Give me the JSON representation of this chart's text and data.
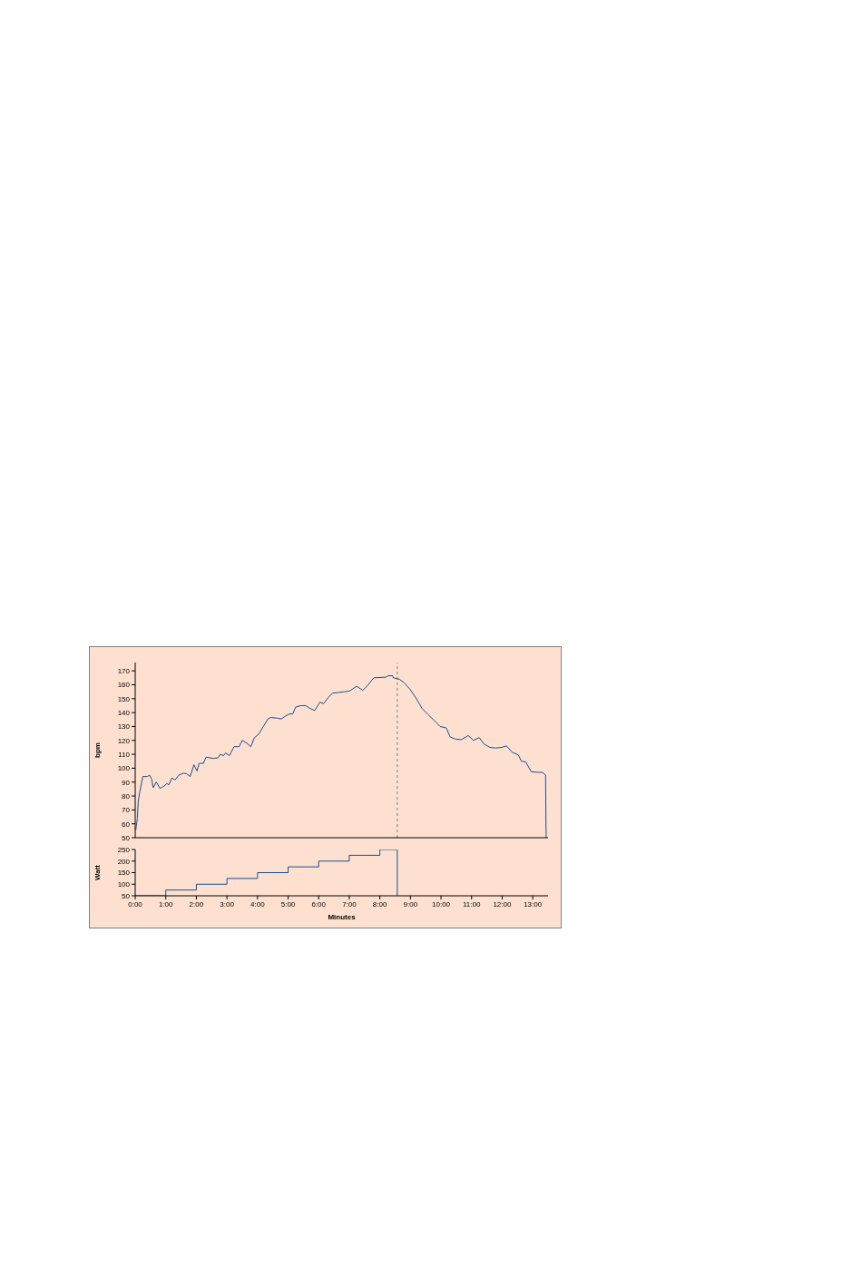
{
  "chart_data": [
    {
      "type": "line",
      "ylabel": "bpm",
      "tick_labels": "y",
      "color": "#1a4f8f",
      "xlim": [
        0,
        13.5
      ],
      "ylim": [
        50,
        176
      ],
      "yticks": [
        50,
        60,
        70,
        80,
        90,
        100,
        110,
        120,
        130,
        140,
        150,
        160,
        170
      ],
      "x": [
        0.02,
        0.07,
        0.1,
        0.15,
        0.25,
        0.39,
        0.47,
        0.54,
        0.59,
        0.69,
        0.81,
        0.94,
        1.04,
        1.1,
        1.2,
        1.3,
        1.43,
        1.58,
        1.68,
        1.8,
        1.92,
        2.02,
        2.09,
        2.23,
        2.32,
        2.56,
        2.71,
        2.78,
        2.89,
        2.96,
        3.08,
        3.23,
        3.4,
        3.5,
        3.65,
        3.78,
        3.9,
        4.04,
        4.19,
        4.34,
        4.44,
        4.64,
        4.78,
        4.88,
        5.03,
        5.15,
        5.25,
        5.42,
        5.57,
        5.72,
        5.87,
        6.04,
        6.16,
        6.32,
        6.45,
        6.67,
        7.01,
        7.24,
        7.44,
        7.6,
        7.8,
        8.2,
        8.27,
        8.42,
        8.44,
        8.64,
        8.79,
        8.98,
        9.18,
        9.38,
        9.58,
        9.77,
        9.97,
        10.17,
        10.3,
        10.46,
        10.66,
        10.89,
        11.06,
        11.25,
        11.4,
        11.6,
        11.79,
        11.99,
        12.14,
        12.33,
        12.53,
        12.63,
        12.77,
        12.95,
        13.17,
        13.32,
        13.42,
        13.43,
        13.44
      ],
      "values": [
        55.5,
        64,
        76,
        83,
        94,
        94,
        95,
        92,
        86,
        90,
        85.5,
        87,
        89,
        88,
        93,
        91.5,
        95,
        96.5,
        96,
        94,
        102.5,
        98,
        103.5,
        103.5,
        108,
        107,
        107.5,
        110,
        109,
        111,
        109,
        115.5,
        115.5,
        120,
        118,
        115.5,
        122,
        124.5,
        130,
        135.5,
        136.5,
        136,
        135.5,
        137,
        139,
        139,
        144,
        145,
        145,
        143,
        141.5,
        147.5,
        146.5,
        151,
        154,
        154.5,
        155.5,
        159,
        156,
        159.5,
        165,
        165.5,
        166.5,
        166.5,
        165,
        164,
        161.5,
        157,
        150.5,
        143,
        138.5,
        134.5,
        130,
        129,
        122.5,
        121,
        120.5,
        123.5,
        120,
        122,
        117.5,
        115,
        114.5,
        115,
        116,
        111.5,
        109.5,
        105,
        104.5,
        97.5,
        97,
        97,
        95,
        63,
        50
      ],
      "ref_lines": [
        {
          "axis": "x",
          "value": 8.57,
          "color": "#808080",
          "line_style": "dashed"
        }
      ]
    },
    {
      "type": "step",
      "ylabel": "Watt",
      "xlabel": "Minutes",
      "color": "#1a4f8f",
      "xlim": [
        0,
        13.5
      ],
      "ylim": [
        50,
        250
      ],
      "yticks": [
        50,
        100,
        150,
        200,
        250
      ],
      "xticks": [
        {
          "value": 0,
          "label": "0:00"
        },
        {
          "value": 1,
          "label": "1:00"
        },
        {
          "value": 2,
          "label": "2:00"
        },
        {
          "value": 3,
          "label": "3:00"
        },
        {
          "value": 4,
          "label": "4:00"
        },
        {
          "value": 5,
          "label": "5:00"
        },
        {
          "value": 6,
          "label": "6:00"
        },
        {
          "value": 7,
          "label": "7:00"
        },
        {
          "value": 8,
          "label": "8:00"
        },
        {
          "value": 9,
          "label": "9:00"
        },
        {
          "value": 10,
          "label": "10:00"
        },
        {
          "value": 11,
          "label": "11:00"
        },
        {
          "value": 12,
          "label": "12:00"
        },
        {
          "value": 13,
          "label": "13:00"
        }
      ],
      "x": [
        0,
        1,
        2,
        3,
        4,
        5,
        6,
        7,
        8,
        8.57
      ],
      "values": [
        50,
        75,
        100,
        125,
        150,
        175,
        200,
        225,
        250,
        50
      ]
    }
  ]
}
